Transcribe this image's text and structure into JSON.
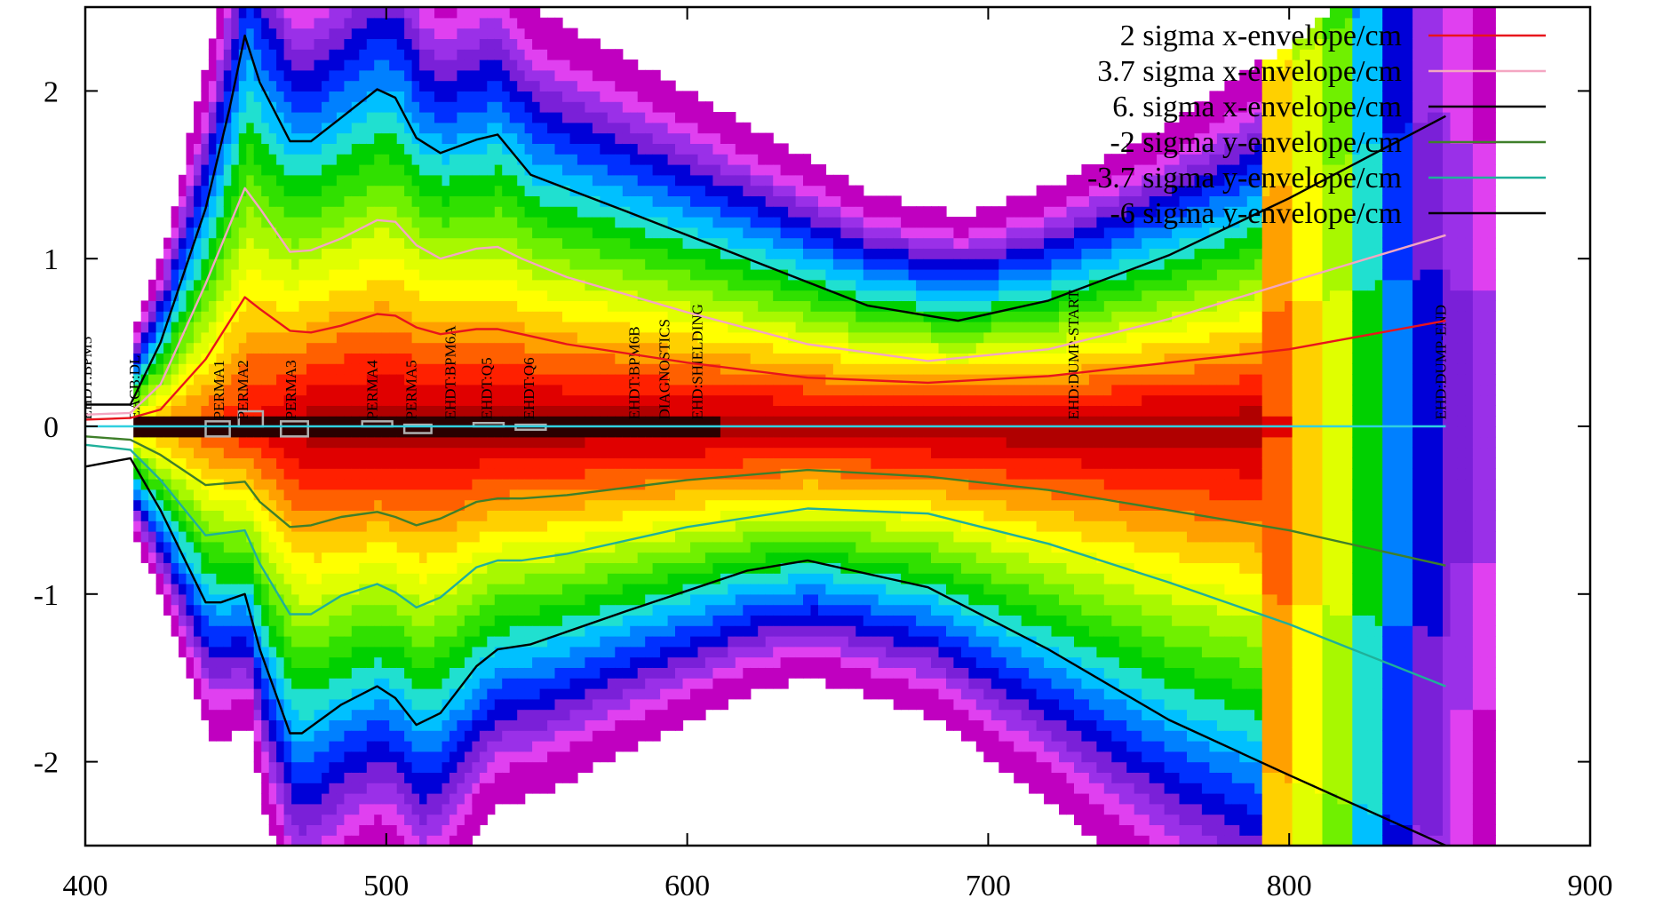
{
  "chart_data": {
    "type": "line",
    "xlim": [
      400,
      900
    ],
    "ylim": [
      -2.5,
      2.5
    ],
    "x_ticks": [
      400,
      500,
      600,
      700,
      800,
      900
    ],
    "y_ticks": [
      -2,
      -1,
      0,
      1,
      2
    ],
    "grid": false,
    "legend_position": "top-right",
    "background": "beam density heatmap (white → magenta → purple → blue → cyan → green → yellow → orange → red → dark red)",
    "beam_end_x": 852,
    "series": [
      {
        "name": "2 sigma x-envelope/cm",
        "color": "#e8141c",
        "x": [
          400,
          415,
          425,
          440,
          453,
          458,
          468,
          475,
          485,
          497,
          503,
          510,
          518,
          530,
          537,
          545,
          560,
          600,
          640,
          680,
          720,
          760,
          800,
          852
        ],
        "y": [
          0.04,
          0.05,
          0.1,
          0.4,
          0.77,
          0.7,
          0.57,
          0.56,
          0.6,
          0.67,
          0.66,
          0.59,
          0.55,
          0.58,
          0.58,
          0.55,
          0.49,
          0.38,
          0.29,
          0.26,
          0.3,
          0.38,
          0.46,
          0.63
        ]
      },
      {
        "name": "3.7 sigma x-envelope/cm",
        "color": "#f4a6c2",
        "x": [
          400,
          415,
          425,
          440,
          453,
          458,
          468,
          475,
          485,
          497,
          503,
          510,
          518,
          530,
          537,
          545,
          560,
          600,
          640,
          680,
          720,
          760,
          800,
          852
        ],
        "y": [
          0.07,
          0.08,
          0.25,
          0.85,
          1.42,
          1.3,
          1.04,
          1.05,
          1.12,
          1.23,
          1.22,
          1.08,
          1.0,
          1.06,
          1.07,
          1.0,
          0.89,
          0.68,
          0.49,
          0.39,
          0.46,
          0.64,
          0.86,
          1.14
        ]
      },
      {
        "name": "6. sigma x-envelope/cm",
        "color": "#000000",
        "x": [
          400,
          415,
          425,
          440,
          448,
          453,
          458,
          468,
          475,
          485,
          497,
          503,
          510,
          518,
          530,
          537,
          548,
          580,
          620,
          660,
          690,
          720,
          760,
          800,
          852
        ],
        "y": [
          0.13,
          0.13,
          0.5,
          1.3,
          1.9,
          2.33,
          2.05,
          1.7,
          1.7,
          1.84,
          2.01,
          1.96,
          1.72,
          1.63,
          1.71,
          1.74,
          1.5,
          1.28,
          1.0,
          0.72,
          0.63,
          0.75,
          1.02,
          1.36,
          1.85
        ]
      },
      {
        "name": "-2 sigma y-envelope/cm",
        "color": "#3f7f2a",
        "x": [
          400,
          415,
          425,
          440,
          453,
          458,
          468,
          475,
          485,
          497,
          503,
          510,
          518,
          530,
          537,
          545,
          560,
          600,
          640,
          680,
          720,
          760,
          800,
          852
        ],
        "y": [
          -0.06,
          -0.08,
          -0.17,
          -0.35,
          -0.33,
          -0.45,
          -0.6,
          -0.59,
          -0.54,
          -0.51,
          -0.54,
          -0.59,
          -0.55,
          -0.45,
          -0.43,
          -0.43,
          -0.41,
          -0.32,
          -0.26,
          -0.3,
          -0.38,
          -0.5,
          -0.62,
          -0.83
        ]
      },
      {
        "name": "-3.7 sigma y-envelope/cm",
        "color": "#1fb09a",
        "x": [
          400,
          415,
          425,
          440,
          453,
          458,
          468,
          475,
          485,
          497,
          503,
          510,
          518,
          530,
          537,
          545,
          560,
          600,
          640,
          680,
          720,
          760,
          800,
          852
        ],
        "y": [
          -0.11,
          -0.14,
          -0.32,
          -0.65,
          -0.62,
          -0.82,
          -1.12,
          -1.12,
          -1.01,
          -0.94,
          -0.99,
          -1.08,
          -1.02,
          -0.84,
          -0.8,
          -0.8,
          -0.76,
          -0.6,
          -0.49,
          -0.52,
          -0.7,
          -0.93,
          -1.18,
          -1.55
        ]
      },
      {
        "name": "-6 sigma y-envelope/cm",
        "color": "#000000",
        "x": [
          400,
          415,
          425,
          440,
          445,
          453,
          458,
          468,
          472,
          485,
          497,
          503,
          510,
          518,
          530,
          537,
          548,
          580,
          620,
          640,
          680,
          720,
          760,
          800,
          852
        ],
        "y": [
          -0.24,
          -0.19,
          -0.5,
          -1.05,
          -1.05,
          -1.0,
          -1.33,
          -1.83,
          -1.83,
          -1.66,
          -1.55,
          -1.62,
          -1.78,
          -1.71,
          -1.43,
          -1.33,
          -1.3,
          -1.1,
          -0.86,
          -0.8,
          -0.96,
          -1.33,
          -1.75,
          -2.08,
          -2.5
        ]
      }
    ],
    "markers": [
      {
        "label": "EHDT:BPM5",
        "x": 402
      },
      {
        "label": "EACB:DL",
        "x": 418
      },
      {
        "label": "PERMA1",
        "x": 446
      },
      {
        "label": "PERMA2",
        "x": 454
      },
      {
        "label": "PERMA3",
        "x": 470
      },
      {
        "label": "PERMA4",
        "x": 497
      },
      {
        "label": "PERMA5",
        "x": 510
      },
      {
        "label": "EHDT:BPM6A",
        "x": 523
      },
      {
        "label": "EHDT:Q5",
        "x": 535
      },
      {
        "label": "EHDT:Q6",
        "x": 549
      },
      {
        "label": "EHDT:BPM6B",
        "x": 584
      },
      {
        "label": "DIAGNOSTICS",
        "x": 594
      },
      {
        "label": "EHD:SHIELDING",
        "x": 605
      },
      {
        "label": "EHD:DUMP-START",
        "x": 730
      },
      {
        "label": "EHD:DUMP-END",
        "x": 852
      }
    ],
    "magnet_boxes": [
      {
        "x": [
          440,
          448
        ],
        "y": [
          -0.06,
          0.03
        ]
      },
      {
        "x": [
          451,
          459
        ],
        "y": [
          0,
          0.09
        ]
      },
      {
        "x": [
          465,
          474
        ],
        "y": [
          -0.06,
          0.03
        ]
      },
      {
        "x": [
          492,
          502
        ],
        "y": [
          0,
          0.03
        ]
      },
      {
        "x": [
          506,
          515
        ],
        "y": [
          -0.04,
          0.01
        ]
      },
      {
        "x": [
          529,
          539
        ],
        "y": [
          0,
          0.02
        ]
      },
      {
        "x": [
          543,
          553
        ],
        "y": [
          -0.02,
          0.01
        ]
      }
    ]
  }
}
